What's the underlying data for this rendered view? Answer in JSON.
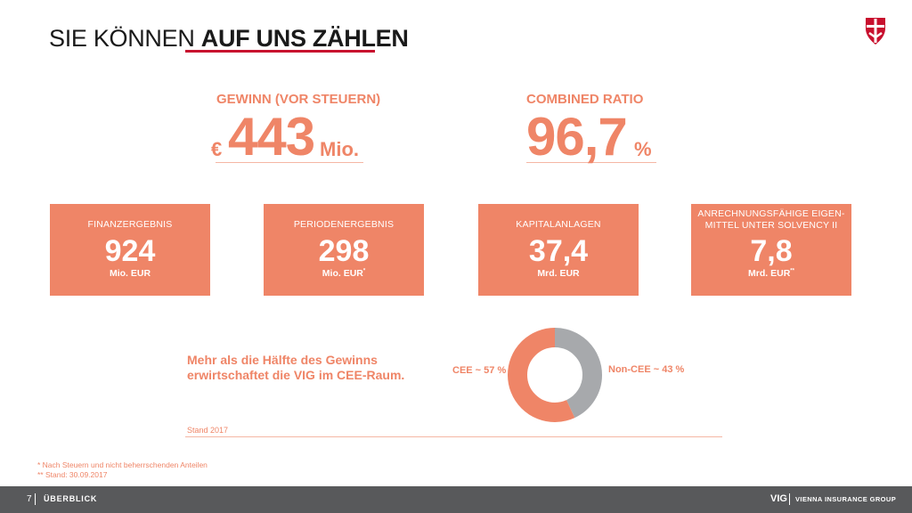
{
  "header": {
    "title_light": "SIE KÖNNEN ",
    "title_bold": "AUF UNS ZÄHLEN",
    "logo_icon": "vig-shield-logo-icon",
    "accent_color": "#c8102e"
  },
  "kpis": {
    "gewinn": {
      "label": "GEWINN (VOR STEUERN)",
      "currency": "€",
      "value": "443",
      "unit": "Mio."
    },
    "combined": {
      "label": "COMBINED RATIO",
      "value": "96,7",
      "unit": "%"
    }
  },
  "boxes": [
    {
      "label_lines": [
        "FINANZERGEBNIS"
      ],
      "value": "924",
      "unit": "Mio. EUR",
      "marker": ""
    },
    {
      "label_lines": [
        "PERIODENERGEBNIS"
      ],
      "value": "298",
      "unit": "Mio. EUR",
      "marker": "*"
    },
    {
      "label_lines": [
        "KAPITALANLAGEN"
      ],
      "value": "37,4",
      "unit": "Mrd. EUR",
      "marker": ""
    },
    {
      "label_lines": [
        "ANRECHNUNGSFÄHIGE EIGEN-",
        "MITTEL UNTER SOLVENCY II"
      ],
      "value": "7,8",
      "unit": "Mrd. EUR",
      "marker": "**"
    }
  ],
  "cee": {
    "text_line1": "Mehr als die Hälfte des Gewinns",
    "text_line2": "erwirtschaftet die VIG im CEE-Raum.",
    "stand": "Stand 2017"
  },
  "chart_data": {
    "type": "pie",
    "donut": true,
    "categories": [
      "CEE",
      "Non-CEE"
    ],
    "values": [
      57,
      43
    ],
    "labels": [
      "CEE ~ 57 %",
      "Non-CEE ~ 43 %"
    ],
    "colors": [
      "#ef8567",
      "#a7a9ac"
    ],
    "title": ""
  },
  "footnotes": {
    "note1": "*   Nach Steuern und nicht beherrschenden Anteilen",
    "note2": "** Stand: 30.09.2017"
  },
  "footer": {
    "page": "7",
    "section": "ÜBERBLICK",
    "brand": "VIG",
    "group": "VIENNA INSURANCE GROUP"
  },
  "colors": {
    "accent": "#ef8567",
    "grey": "#a7a9ac",
    "footer_bg": "#58595b"
  }
}
